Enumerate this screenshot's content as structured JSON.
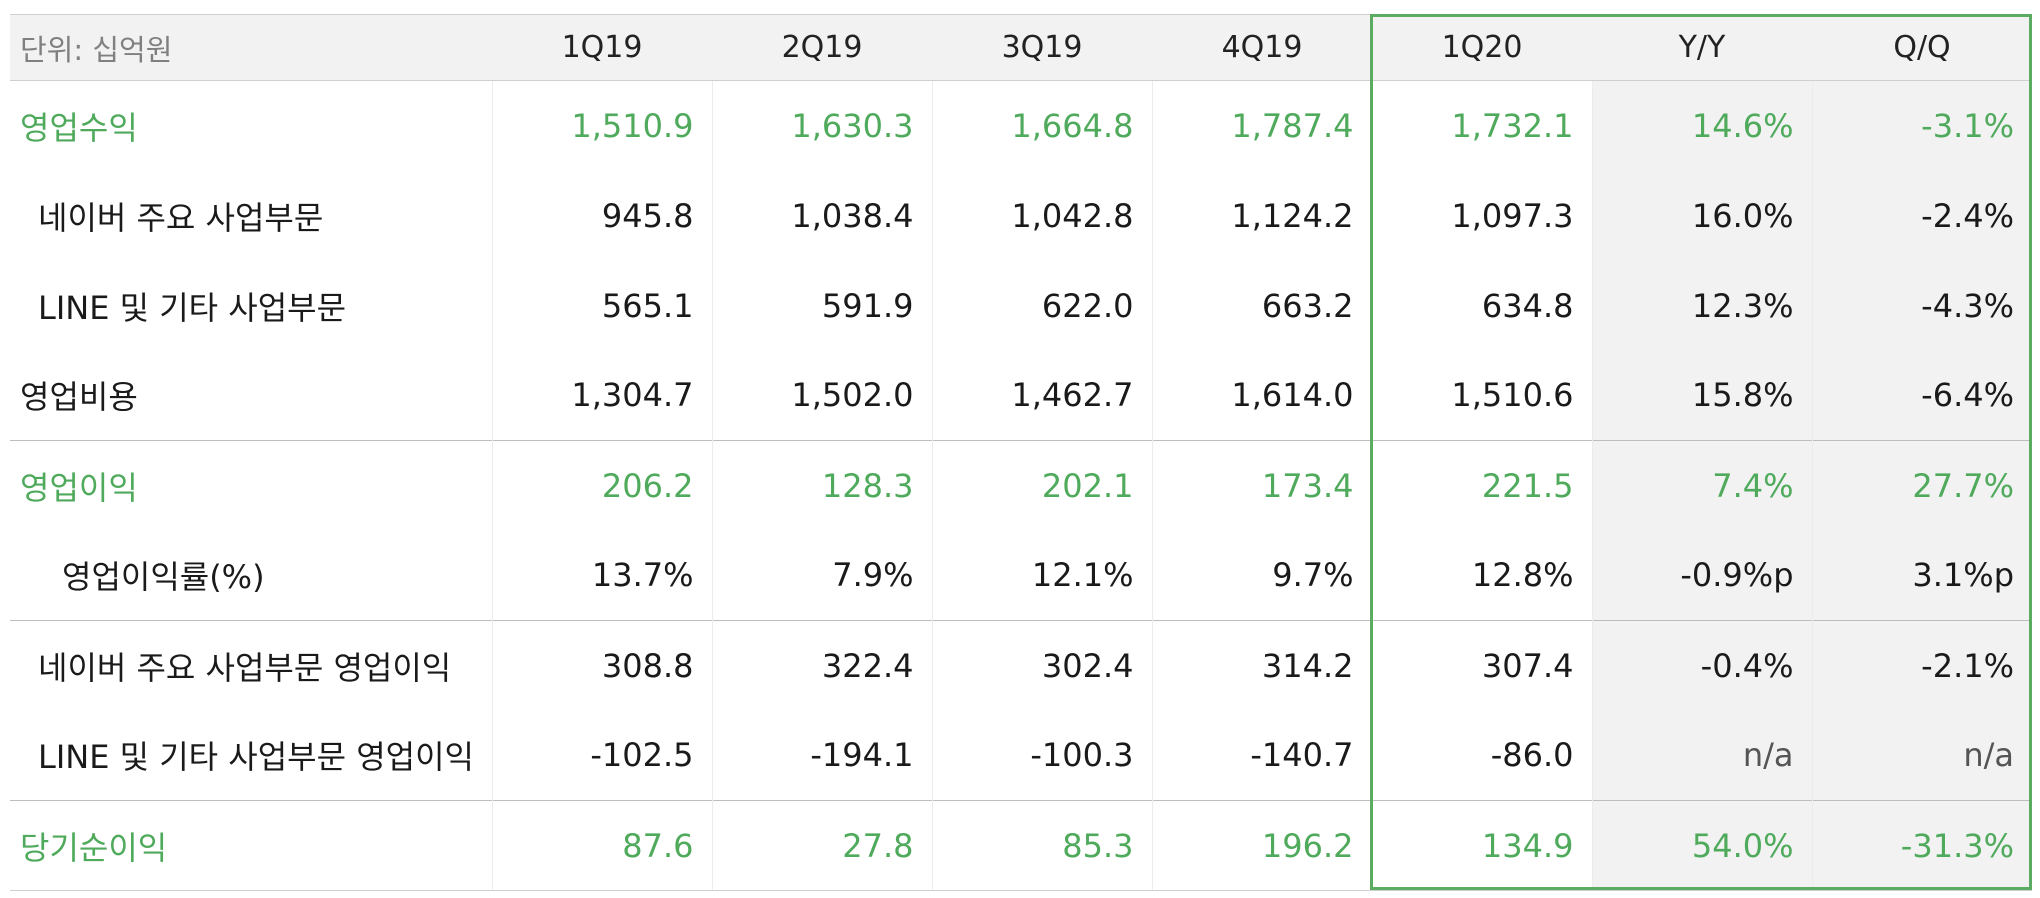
{
  "table": {
    "unit_label": "단위: 십억원",
    "columns": [
      "1Q19",
      "2Q19",
      "3Q19",
      "4Q19",
      "1Q20",
      "Y/Y",
      "Q/Q"
    ],
    "rows": [
      {
        "label": "영업수익",
        "values": [
          "1,510.9",
          "1,630.3",
          "1,664.8",
          "1,787.4",
          "1,732.1",
          "14.6%",
          "-3.1%"
        ]
      },
      {
        "label": "네이버 주요 사업부문",
        "values": [
          "945.8",
          "1,038.4",
          "1,042.8",
          "1,124.2",
          "1,097.3",
          "16.0%",
          "-2.4%"
        ]
      },
      {
        "label": "LINE 및 기타 사업부문",
        "values": [
          "565.1",
          "591.9",
          "622.0",
          "663.2",
          "634.8",
          "12.3%",
          "-4.3%"
        ]
      },
      {
        "label": "영업비용",
        "values": [
          "1,304.7",
          "1,502.0",
          "1,462.7",
          "1,614.0",
          "1,510.6",
          "15.8%",
          "-6.4%"
        ]
      },
      {
        "label": "영업이익",
        "values": [
          "206.2",
          "128.3",
          "202.1",
          "173.4",
          "221.5",
          "7.4%",
          "27.7%"
        ]
      },
      {
        "label": "영업이익률(%)",
        "values": [
          "13.7%",
          "7.9%",
          "12.1%",
          "9.7%",
          "12.8%",
          "-0.9%p",
          "3.1%p"
        ]
      },
      {
        "label": "네이버 주요 사업부문 영업이익",
        "values": [
          "308.8",
          "322.4",
          "302.4",
          "314.2",
          "307.4",
          "-0.4%",
          "-2.1%"
        ]
      },
      {
        "label": "LINE 및 기타 사업부문 영업이익",
        "values": [
          "-102.5",
          "-194.1",
          "-100.3",
          "-140.7",
          "-86.0",
          "n/a",
          "n/a"
        ]
      },
      {
        "label": "당기순이익",
        "values": [
          "87.6",
          "27.8",
          "85.3",
          "196.2",
          "134.9",
          "54.0%",
          "-31.3%"
        ]
      }
    ]
  },
  "colors": {
    "accent_green": "#4faa5c",
    "highlight_border": "#5bab63",
    "header_background": "#f2f2f2"
  }
}
